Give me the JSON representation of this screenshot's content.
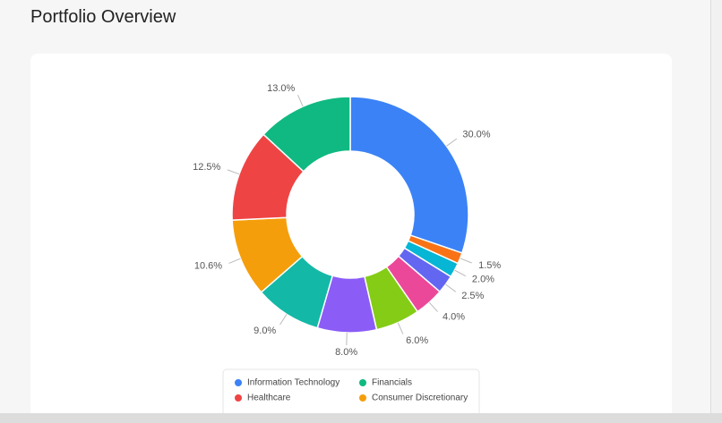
{
  "chart_data": {
    "type": "doughnut",
    "title": "Portfolio Overview",
    "categories": [
      "Information Technology",
      null,
      null,
      null,
      null,
      null,
      null,
      null,
      "Consumer Discretionary",
      "Healthcare",
      "Financials"
    ],
    "values": [
      30.0,
      1.5,
      2.0,
      2.5,
      4.0,
      6.0,
      8.0,
      9.0,
      10.6,
      12.5,
      13.0
    ],
    "value_labels": [
      "30.0%",
      "1.5%",
      "2.0%",
      "2.5%",
      "4.0%",
      "6.0%",
      "8.0%",
      "9.0%",
      "10.6%",
      "12.5%",
      "13.0%"
    ],
    "colors": [
      "#3b82f6",
      "#f97316",
      "#06b6d4",
      "#6366f1",
      "#ec4899",
      "#84cc16",
      "#8b5cf6",
      "#14b8a6",
      "#f59e0b",
      "#ef4444",
      "#10b981"
    ]
  }
}
